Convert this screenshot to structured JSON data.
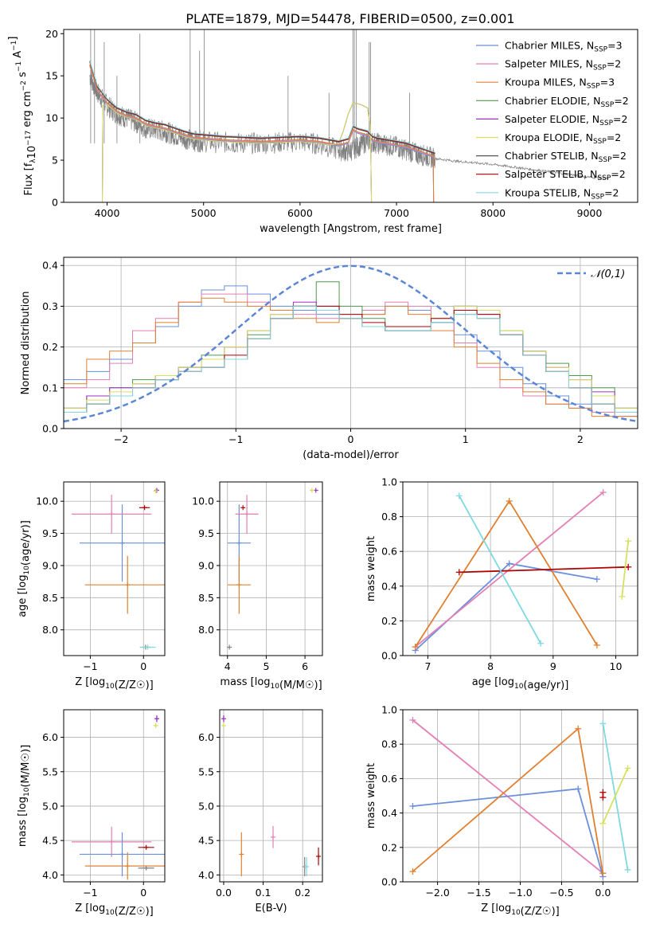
{
  "figure_title": "PLATE=1879, MJD=54478, FIBERID=0500, z=0.001",
  "models": [
    {
      "label": "Chabrier MILES, N",
      "sub": "SSP",
      "suffix": "=3",
      "color": "#6a8fdb"
    },
    {
      "label": "Salpeter MILES, N",
      "sub": "SSP",
      "suffix": "=2",
      "color": "#e37fb5"
    },
    {
      "label": "Kroupa MILES, N",
      "sub": "SSP",
      "suffix": "=3",
      "color": "#e08030"
    },
    {
      "label": "Chabrier ELODIE, N",
      "sub": "SSP",
      "suffix": "=2",
      "color": "#4f9a4f"
    },
    {
      "label": "Salpeter ELODIE, N",
      "sub": "SSP",
      "suffix": "=2",
      "color": "#a030c0"
    },
    {
      "label": "Kroupa ELODIE, N",
      "sub": "SSP",
      "suffix": "=2",
      "color": "#d7e060"
    },
    {
      "label": "Chabrier STELIB, N",
      "sub": "SSP",
      "suffix": "=2",
      "color": "#555555"
    },
    {
      "label": "Salpeter STELIB, N",
      "sub": "SSP",
      "suffix": "=2",
      "color": "#b00000"
    },
    {
      "label": "Kroupa STELIB, N",
      "sub": "SSP",
      "suffix": "=2",
      "color": "#80d8e0"
    }
  ],
  "chart_data": [
    {
      "type": "line",
      "panel": "spectrum",
      "xlabel": "wavelength [Angstrom, rest frame]",
      "ylabel": "Flux [f_λ10^-17 erg cm^-2 s^-1 A^-1]",
      "xlim": [
        3550,
        9500
      ],
      "ylim": [
        0,
        20.5
      ],
      "xticks": [
        4000,
        5000,
        6000,
        7000,
        8000,
        9000
      ],
      "yticks": [
        0,
        5,
        10,
        15,
        20
      ],
      "grid": false,
      "legend": "top-right",
      "data_series": {
        "name": "",
        "color": "#808080",
        "x": [
          3820,
          3900,
          4000,
          4100,
          4200,
          4300,
          4400,
          4500,
          4600,
          4700,
          4800,
          4900,
          5000,
          5200,
          5400,
          5600,
          5800,
          6000,
          6200,
          6400,
          6500,
          6600,
          6700,
          6800,
          6900,
          7000,
          7100,
          7200,
          7300,
          7400,
          7600,
          7800,
          8000,
          8200,
          8400,
          8600,
          8800,
          9000,
          9200
        ],
        "y": [
          15.0,
          13.0,
          11.5,
          10.5,
          10.0,
          9.5,
          8.8,
          8.6,
          8.4,
          8.0,
          7.6,
          7.3,
          7.2,
          7.1,
          7.0,
          7.0,
          7.1,
          7.2,
          6.9,
          6.2,
          6.0,
          6.6,
          7.3,
          7.0,
          6.8,
          6.6,
          6.2,
          5.8,
          5.5,
          5.2,
          4.9,
          4.7,
          4.5,
          4.2,
          3.9,
          3.6,
          3.3,
          3.0,
          2.8
        ]
      },
      "model_series": {
        "x": [
          3820,
          3900,
          4000,
          4100,
          4200,
          4300,
          4400,
          4500,
          4600,
          4700,
          4800,
          4900,
          5000,
          5200,
          5400,
          5600,
          5800,
          6000,
          6200,
          6300,
          6400,
          6500,
          6550,
          6600,
          6700,
          6750,
          6800,
          6900,
          7000,
          7100,
          7200,
          7300,
          7400
        ],
        "y": [
          16.5,
          13.5,
          12.0,
          11.0,
          10.5,
          10.2,
          9.5,
          9.2,
          9.0,
          8.6,
          8.2,
          7.9,
          7.8,
          7.6,
          7.5,
          7.4,
          7.5,
          7.6,
          7.4,
          7.2,
          7.0,
          7.3,
          8.8,
          8.5,
          8.2,
          7.6,
          7.4,
          7.2,
          7.0,
          6.8,
          6.4,
          6.0,
          5.6
        ]
      },
      "elodie_bump": {
        "x": [
          6400,
          6450,
          6500,
          6550,
          6600,
          6650,
          6700,
          6730,
          6740
        ],
        "y": [
          7.0,
          8.5,
          10.5,
          11.8,
          11.7,
          11.5,
          11.2,
          9.0,
          0
        ]
      }
    },
    {
      "type": "line",
      "panel": "residual-histogram",
      "xlabel": "(data-model)/error",
      "ylabel": "Normed distribution",
      "xlim": [
        -2.5,
        2.5
      ],
      "ylim": [
        0,
        0.42
      ],
      "xticks": [
        -2,
        -1,
        0,
        1,
        2
      ],
      "yticks": [
        0.0,
        0.1,
        0.2,
        0.3,
        0.4
      ],
      "grid": true,
      "legend": "top-right",
      "reference": {
        "name": "𝒩(0,1)",
        "color": "#5b86d6"
      },
      "hist_x": [
        -2.5,
        -2.3,
        -2.1,
        -1.9,
        -1.7,
        -1.5,
        -1.3,
        -1.1,
        -0.9,
        -0.7,
        -0.5,
        -0.3,
        -0.1,
        0.1,
        0.3,
        0.5,
        0.7,
        0.9,
        1.1,
        1.3,
        1.5,
        1.7,
        1.9,
        2.1,
        2.3
      ],
      "hist_groups": [
        {
          "color": "#6a8fdb",
          "y": [
            0.12,
            0.14,
            0.17,
            0.21,
            0.25,
            0.3,
            0.34,
            0.35,
            0.33,
            0.3,
            0.29,
            0.28,
            0.27,
            0.28,
            0.3,
            0.29,
            0.27,
            0.23,
            0.19,
            0.15,
            0.11,
            0.08,
            0.06,
            0.04,
            0.03
          ]
        },
        {
          "color": "#e37fb5",
          "y": [
            0.1,
            0.12,
            0.16,
            0.24,
            0.27,
            0.31,
            0.33,
            0.33,
            0.31,
            0.29,
            0.28,
            0.27,
            0.28,
            0.29,
            0.31,
            0.3,
            0.27,
            0.21,
            0.15,
            0.1,
            0.08,
            0.06,
            0.05,
            0.04,
            0.03
          ]
        },
        {
          "color": "#e08030",
          "y": [
            0.11,
            0.17,
            0.19,
            0.21,
            0.26,
            0.31,
            0.32,
            0.31,
            0.3,
            0.29,
            0.27,
            0.26,
            0.27,
            0.28,
            0.3,
            0.28,
            0.24,
            0.2,
            0.16,
            0.12,
            0.09,
            0.06,
            0.05,
            0.03,
            0.03
          ]
        },
        {
          "color": "#4f9a4f",
          "y": [
            0.05,
            0.08,
            0.1,
            0.12,
            0.13,
            0.15,
            0.18,
            0.2,
            0.23,
            0.27,
            0.3,
            0.36,
            0.3,
            0.27,
            0.24,
            0.24,
            0.26,
            0.3,
            0.29,
            0.24,
            0.19,
            0.16,
            0.13,
            0.1,
            0.05
          ]
        },
        {
          "color": "#a030c0",
          "y": [
            0.05,
            0.08,
            0.1,
            0.11,
            0.13,
            0.15,
            0.17,
            0.2,
            0.24,
            0.28,
            0.31,
            0.3,
            0.27,
            0.25,
            0.24,
            0.24,
            0.26,
            0.3,
            0.28,
            0.23,
            0.19,
            0.15,
            0.12,
            0.09,
            0.05
          ]
        },
        {
          "color": "#d7e060",
          "y": [
            0.05,
            0.07,
            0.09,
            0.11,
            0.13,
            0.15,
            0.17,
            0.2,
            0.24,
            0.28,
            0.3,
            0.29,
            0.27,
            0.25,
            0.25,
            0.25,
            0.27,
            0.3,
            0.29,
            0.24,
            0.19,
            0.15,
            0.12,
            0.08,
            0.05
          ]
        },
        {
          "color": "#555555",
          "y": [
            0.04,
            0.06,
            0.08,
            0.1,
            0.12,
            0.14,
            0.15,
            0.17,
            0.22,
            0.27,
            0.3,
            0.29,
            0.27,
            0.25,
            0.24,
            0.24,
            0.26,
            0.28,
            0.27,
            0.23,
            0.18,
            0.14,
            0.1,
            0.06,
            0.04
          ]
        },
        {
          "color": "#b00000",
          "y": [
            0.04,
            0.06,
            0.08,
            0.1,
            0.12,
            0.14,
            0.15,
            0.18,
            0.22,
            0.27,
            0.3,
            0.3,
            0.28,
            0.26,
            0.25,
            0.25,
            0.27,
            0.29,
            0.28,
            0.23,
            0.18,
            0.14,
            0.1,
            0.06,
            0.04
          ]
        },
        {
          "color": "#80d8e0",
          "y": [
            0.04,
            0.06,
            0.08,
            0.1,
            0.12,
            0.14,
            0.15,
            0.17,
            0.22,
            0.27,
            0.3,
            0.29,
            0.27,
            0.25,
            0.24,
            0.24,
            0.26,
            0.28,
            0.27,
            0.23,
            0.18,
            0.14,
            0.1,
            0.06,
            0.04
          ]
        }
      ]
    },
    {
      "type": "scatter",
      "panel": "age-vs-Z",
      "xlabel": "Z [log10(Z/Z☉)]",
      "ylabel": "age [log10(age/yr)]",
      "xlim": [
        -1.5,
        0.4
      ],
      "ylim": [
        7.6,
        10.3
      ],
      "xticks": [
        -1,
        0
      ],
      "yticks": [
        8.0,
        8.5,
        9.0,
        9.5,
        10.0
      ],
      "grid": true,
      "points": [
        {
          "color": "#6a8fdb",
          "x": -0.4,
          "xerr": 0.8,
          "y": 9.35,
          "yerr": 0.6
        },
        {
          "color": "#e37fb5",
          "x": -0.6,
          "xerr": 0.75,
          "y": 9.8,
          "yerr": 0.3
        },
        {
          "color": "#e08030",
          "x": -0.3,
          "xerr": 0.8,
          "y": 8.7,
          "yerr": 0.45
        },
        {
          "color": "#b00000",
          "x": 0.02,
          "xerr": 0.1,
          "y": 9.9,
          "yerr": 0.0
        },
        {
          "color": "#808080",
          "x": 0.04,
          "xerr": 0.1,
          "y": 7.73,
          "yerr": 0.0
        },
        {
          "color": "#80d8e0",
          "x": 0.08,
          "xerr": 0.15,
          "y": 7.73,
          "yerr": 0.0
        },
        {
          "color": "#a030c0",
          "x": 0.25,
          "xerr": 0.03,
          "y": 10.17,
          "yerr": 0.0
        },
        {
          "color": "#d7e060",
          "x": 0.23,
          "xerr": 0.03,
          "y": 10.16,
          "yerr": 0.0
        }
      ]
    },
    {
      "type": "scatter",
      "panel": "age-vs-mass",
      "xlabel": "mass [log10(M/M☉)]",
      "ylabel": "",
      "xlim": [
        3.8,
        6.45
      ],
      "ylim": [
        7.6,
        10.3
      ],
      "xticks": [
        4,
        5,
        6
      ],
      "yticks": [
        8.0,
        8.5,
        9.0,
        9.5,
        10.0
      ],
      "grid": true,
      "points": [
        {
          "color": "#6a8fdb",
          "x": 4.3,
          "xerr": 0.3,
          "y": 9.35,
          "yerr": 0.6
        },
        {
          "color": "#e37fb5",
          "x": 4.5,
          "xerr": 0.3,
          "y": 9.8,
          "yerr": 0.3
        },
        {
          "color": "#e08030",
          "x": 4.3,
          "xerr": 0.3,
          "y": 8.7,
          "yerr": 0.45
        },
        {
          "color": "#b00000",
          "x": 4.4,
          "xerr": 0.0,
          "y": 9.9,
          "yerr": 0.0
        },
        {
          "color": "#808080",
          "x": 4.05,
          "xerr": 0.0,
          "y": 7.73,
          "yerr": 0.0
        },
        {
          "color": "#a030c0",
          "x": 6.28,
          "xerr": 0.03,
          "y": 10.17,
          "yerr": 0.0
        },
        {
          "color": "#d7e060",
          "x": 6.18,
          "xerr": 0.03,
          "y": 10.17,
          "yerr": 0.0
        }
      ]
    },
    {
      "type": "line",
      "panel": "mass-weight-vs-age",
      "xlabel": "age [log10(age/yr)]",
      "ylabel": "mass weight",
      "xlim": [
        6.6,
        10.35
      ],
      "ylim": [
        0.0,
        1.0
      ],
      "xticks": [
        7,
        8,
        9,
        10
      ],
      "yticks": [
        0.0,
        0.2,
        0.4,
        0.6,
        0.8,
        1.0
      ],
      "grid": true,
      "series": [
        {
          "color": "#6a8fdb",
          "x": [
            6.8,
            8.3,
            9.7
          ],
          "y": [
            0.03,
            0.53,
            0.44
          ]
        },
        {
          "color": "#e37fb5",
          "x": [
            6.8,
            9.8
          ],
          "y": [
            0.05,
            0.94
          ]
        },
        {
          "color": "#e08030",
          "x": [
            6.8,
            8.3,
            9.7
          ],
          "y": [
            0.05,
            0.89,
            0.06
          ]
        },
        {
          "color": "#b00000",
          "x": [
            7.5,
            10.2
          ],
          "y": [
            0.48,
            0.51
          ]
        },
        {
          "color": "#80d8e0",
          "x": [
            7.5,
            8.8
          ],
          "y": [
            0.92,
            0.07
          ]
        },
        {
          "color": "#d7e060",
          "x": [
            10.1,
            10.2
          ],
          "y": [
            0.34,
            0.66
          ]
        }
      ]
    },
    {
      "type": "scatter",
      "panel": "mass-vs-Z",
      "xlabel": "Z [log10(Z/Z☉)]",
      "ylabel": "mass [log10(M/M☉)]",
      "xlim": [
        -1.5,
        0.4
      ],
      "ylim": [
        3.9,
        6.4
      ],
      "xticks": [
        -1,
        0
      ],
      "yticks": [
        4.0,
        4.5,
        5.0,
        5.5,
        6.0
      ],
      "grid": true,
      "points": [
        {
          "color": "#e37fb5",
          "x": -0.6,
          "xerr": 0.75,
          "y": 4.48,
          "yerr": 0.22
        },
        {
          "color": "#6a8fdb",
          "x": -0.4,
          "xerr": 0.8,
          "y": 4.3,
          "yerr": 0.32
        },
        {
          "color": "#e08030",
          "x": -0.3,
          "xerr": 0.8,
          "y": 4.13,
          "yerr": 0.2
        },
        {
          "color": "#b00000",
          "x": 0.05,
          "xerr": 0.15,
          "y": 4.4,
          "yerr": 0.0
        },
        {
          "color": "#808080",
          "x": 0.05,
          "xerr": 0.15,
          "y": 4.1,
          "yerr": 0.0
        },
        {
          "color": "#a030c0",
          "x": 0.25,
          "xerr": 0.03,
          "y": 6.27,
          "yerr": 0.05
        },
        {
          "color": "#d7e060",
          "x": 0.23,
          "xerr": 0.03,
          "y": 6.17,
          "yerr": 0.03
        }
      ]
    },
    {
      "type": "scatter",
      "panel": "mass-vs-EBV",
      "xlabel": "E(B-V)",
      "ylabel": "",
      "xlim": [
        -0.01,
        0.25
      ],
      "ylim": [
        3.9,
        6.4
      ],
      "xticks": [
        0.0,
        0.1,
        0.2
      ],
      "yticks": [
        4.0,
        4.5,
        5.0,
        5.5,
        6.0
      ],
      "grid": true,
      "points": [
        {
          "color": "#a030c0",
          "x": 0.0,
          "xerr": 0.0,
          "y": 6.27,
          "yerr": 0.05
        },
        {
          "color": "#d7e060",
          "x": 0.0,
          "xerr": 0.0,
          "y": 6.17,
          "yerr": 0.03
        },
        {
          "color": "#e08030",
          "x": 0.045,
          "xerr": 0.0,
          "y": 4.3,
          "yerr": 0.32
        },
        {
          "color": "#e37fb5",
          "x": 0.125,
          "xerr": 0.0,
          "y": 4.55,
          "yerr": 0.16
        },
        {
          "color": "#808080",
          "x": 0.205,
          "xerr": 0.0,
          "y": 4.12,
          "yerr": 0.14
        },
        {
          "color": "#80d8e0",
          "x": 0.21,
          "xerr": 0.0,
          "y": 4.12,
          "yerr": 0.14
        },
        {
          "color": "#b00000",
          "x": 0.24,
          "xerr": 0.0,
          "y": 4.27,
          "yerr": 0.13
        }
      ]
    },
    {
      "type": "line",
      "panel": "mass-weight-vs-Z",
      "xlabel": "Z [log10(Z/Z☉)]",
      "ylabel": "mass weight",
      "xlim": [
        -2.42,
        0.42
      ],
      "ylim": [
        0.0,
        1.0
      ],
      "xticks": [
        -2.0,
        -1.5,
        -1.0,
        -0.5,
        0.0
      ],
      "yticks": [
        0.0,
        0.2,
        0.4,
        0.6,
        0.8,
        1.0
      ],
      "grid": true,
      "series": [
        {
          "color": "#e37fb5",
          "x": [
            -2.3,
            0.0
          ],
          "y": [
            0.94,
            0.05
          ]
        },
        {
          "color": "#6a8fdb",
          "x": [
            -2.3,
            -0.3,
            0.0
          ],
          "y": [
            0.44,
            0.54,
            0.03
          ]
        },
        {
          "color": "#e08030",
          "x": [
            -2.3,
            -0.3,
            0.0
          ],
          "y": [
            0.06,
            0.89,
            0.05
          ]
        },
        {
          "color": "#b00000",
          "x": [
            0.0,
            0.0
          ],
          "y": [
            0.49,
            0.52
          ]
        },
        {
          "color": "#80d8e0",
          "x": [
            0.0,
            0.3
          ],
          "y": [
            0.92,
            0.07
          ]
        },
        {
          "color": "#d7e060",
          "x": [
            0.0,
            0.3
          ],
          "y": [
            0.34,
            0.66
          ]
        }
      ]
    }
  ]
}
